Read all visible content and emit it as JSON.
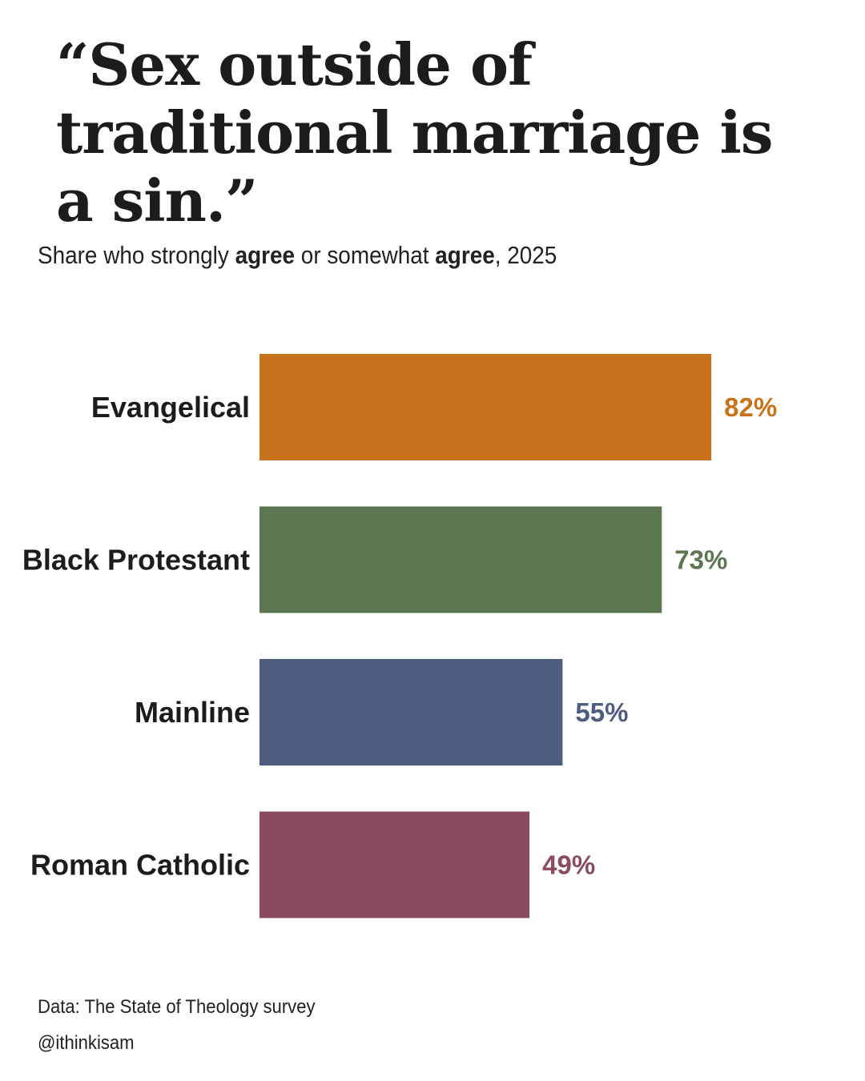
{
  "title": "“Sex outside of traditional marriage is a sin.”",
  "subtitle": {
    "part1": "Share who strongly ",
    "bold1": "agree",
    "part2": " or somewhat ",
    "bold2": "agree",
    "part3": ", 2025"
  },
  "footer": {
    "source": "Data: The State of Theology survey",
    "credit": "@ithinkisam"
  },
  "chart_data": {
    "type": "bar",
    "orientation": "horizontal",
    "categories": [
      "Evangelical",
      "Black Protestant",
      "Mainline",
      "Roman Catholic"
    ],
    "values": [
      82,
      73,
      55,
      49
    ],
    "value_labels": [
      "82%",
      "73%",
      "55%",
      "49%"
    ],
    "colors": [
      "#c8731c",
      "#5c7652",
      "#4e5c80",
      "#8b4a5e"
    ],
    "unit": "%",
    "xlim": [
      0,
      100
    ],
    "grid": false,
    "legend": "none"
  }
}
